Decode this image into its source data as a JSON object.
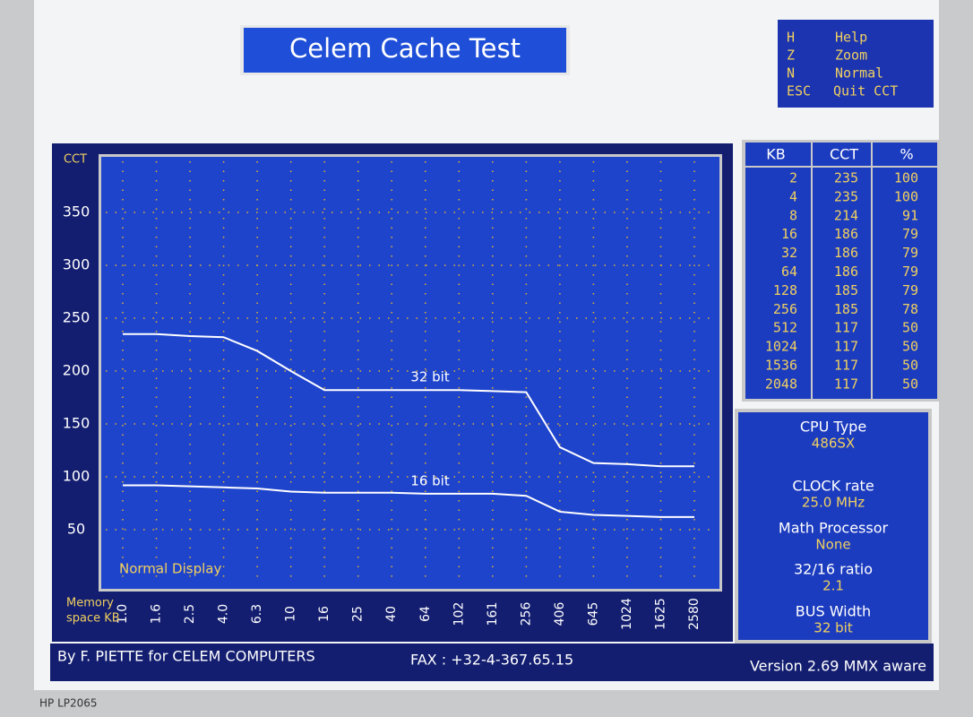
{
  "title": "Celem Cache Test",
  "keys": [
    {
      "key": "H",
      "action": "Help"
    },
    {
      "key": "Z",
      "action": "Zoom"
    },
    {
      "key": "N",
      "action": "Normal"
    },
    {
      "key": "ESC",
      "action": "Quit CCT"
    }
  ],
  "chart_data": {
    "type": "line",
    "y_label": "CCT",
    "x_label": [
      "Memory",
      "space KB"
    ],
    "annotation": "Normal Display",
    "categories": [
      "1.0",
      "1.6",
      "2.5",
      "4.0",
      "6.3",
      "10",
      "16",
      "25",
      "40",
      "64",
      "102",
      "161",
      "256",
      "406",
      "645",
      "1024",
      "1625",
      "2580"
    ],
    "series": [
      {
        "name": "32 bit",
        "color": "#ffffff",
        "values": [
          235,
          235,
          233,
          232,
          219,
          200,
          182,
          182,
          182,
          182,
          182,
          181,
          180,
          128,
          113,
          112,
          110,
          110
        ]
      },
      {
        "name": "16 bit",
        "color": "#ffffff",
        "values": [
          92,
          92,
          91,
          90,
          89,
          86,
          85,
          85,
          85,
          84,
          84,
          84,
          82,
          67,
          64,
          63,
          62,
          62
        ]
      }
    ],
    "ylim": [
      0,
      400
    ],
    "yticks": [
      50,
      100,
      150,
      200,
      250,
      300,
      350
    ],
    "grid": true,
    "grid_color": "#e0b030"
  },
  "table": {
    "header": [
      "KB",
      "CCT",
      "%"
    ],
    "rows": [
      [
        2,
        235,
        100
      ],
      [
        4,
        235,
        100
      ],
      [
        8,
        214,
        91
      ],
      [
        16,
        186,
        79
      ],
      [
        32,
        186,
        79
      ],
      [
        64,
        186,
        79
      ],
      [
        128,
        185,
        79
      ],
      [
        256,
        185,
        78
      ],
      [
        512,
        117,
        50
      ],
      [
        1024,
        117,
        50
      ],
      [
        1536,
        117,
        50
      ],
      [
        2048,
        117,
        50
      ]
    ]
  },
  "info": [
    {
      "label": "CPU Type",
      "value": "486SX"
    },
    {
      "label": "CLOCK rate",
      "value": "25.0 MHz"
    },
    {
      "label": "Math Processor",
      "value": "None"
    },
    {
      "label": "32/16 ratio",
      "value": "2.1"
    },
    {
      "label": "BUS Width",
      "value": "32 bit"
    }
  ],
  "footer": {
    "author": "By F. PIETTE for CELEM COMPUTERS",
    "fax": "FAX : +32-4-367.65.15",
    "version": "Version 2.69 MMX aware"
  },
  "monitor_label": "HP LP2065"
}
